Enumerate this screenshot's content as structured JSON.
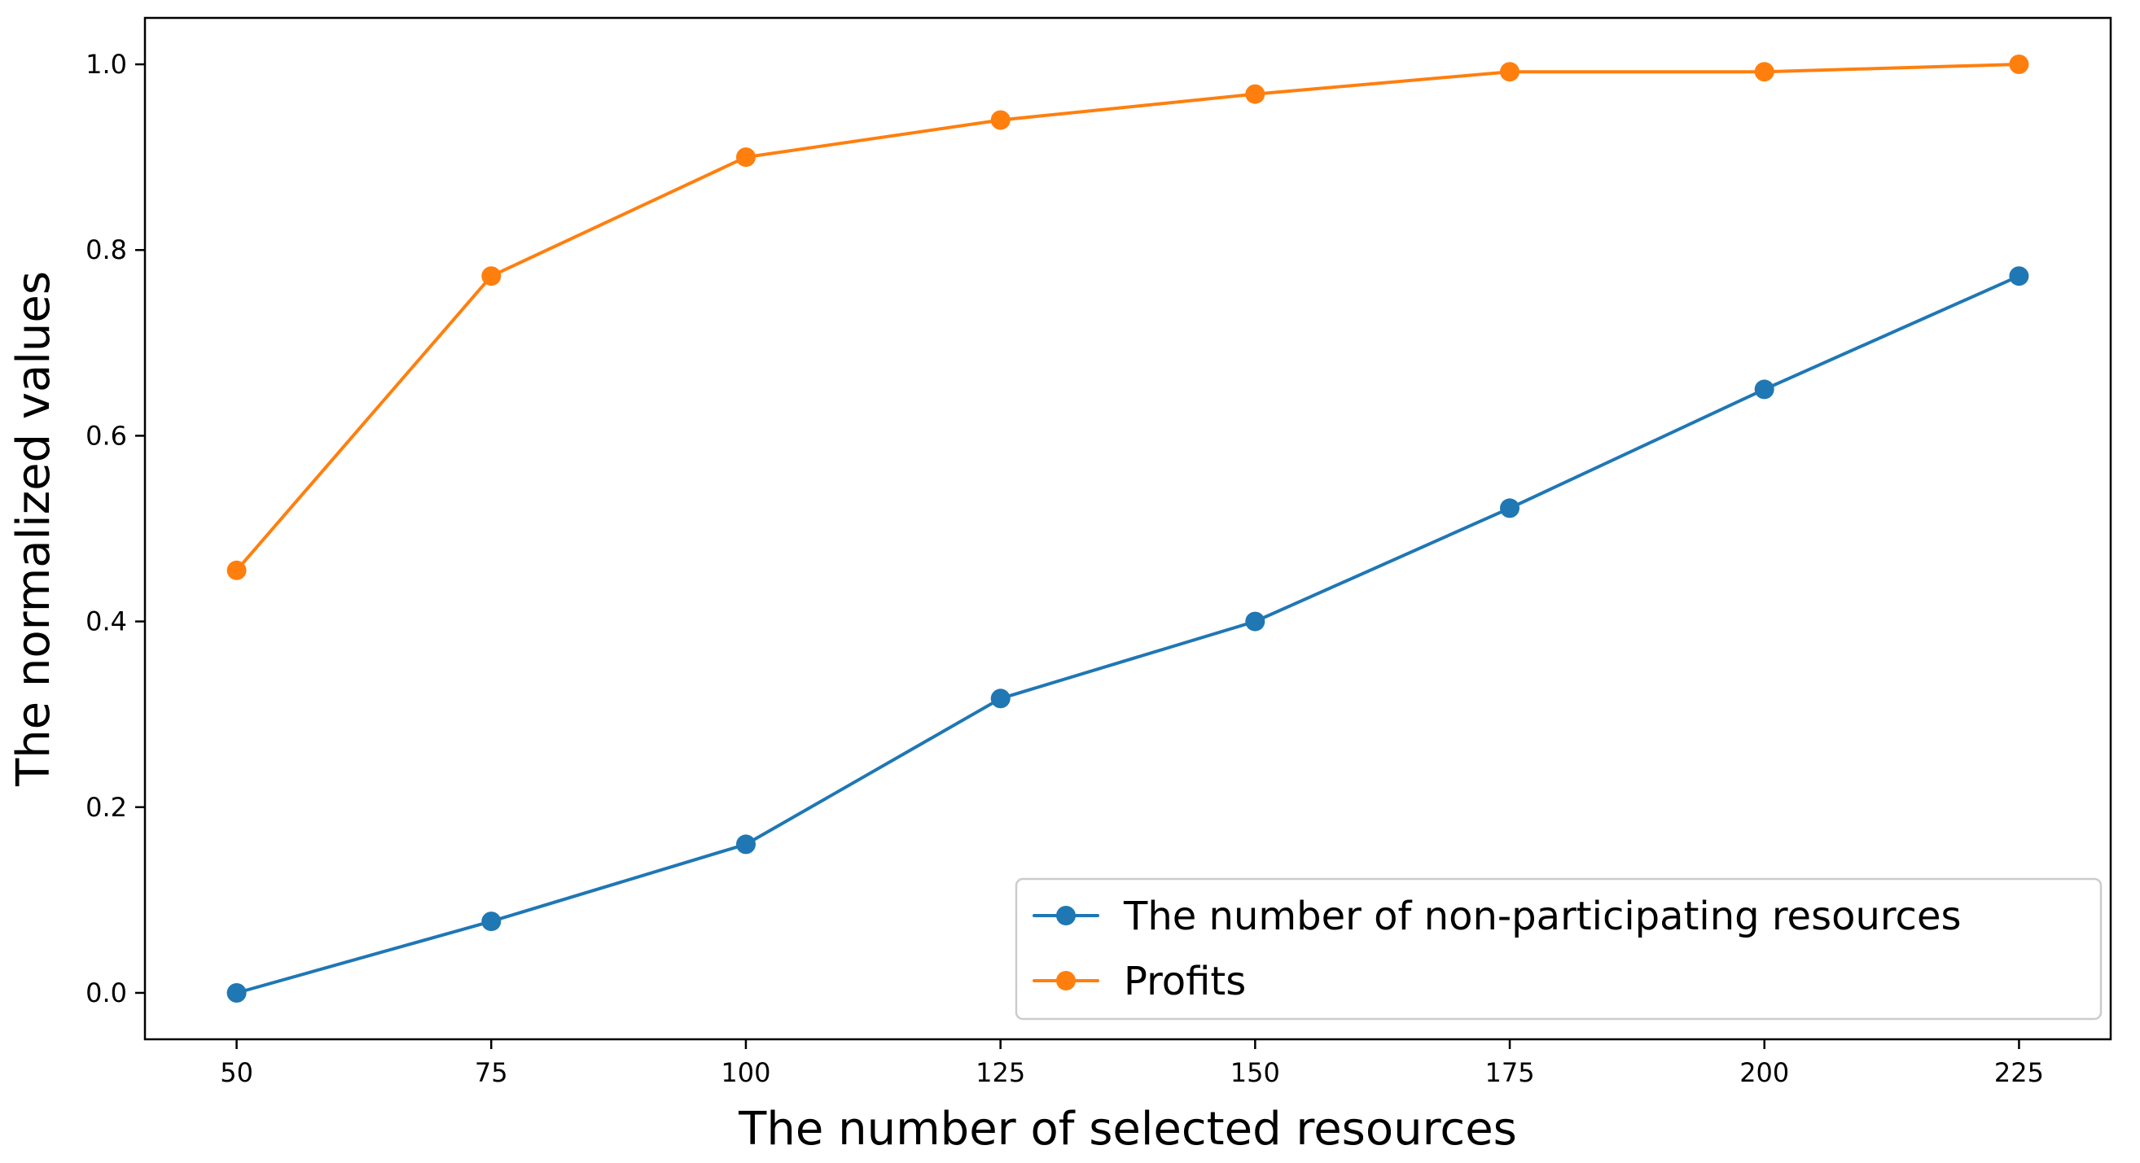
{
  "chart_data": {
    "type": "line",
    "title": "",
    "xlabel": "The number of selected resources",
    "ylabel": "The normalized values",
    "x": [
      50,
      75,
      100,
      125,
      150,
      175,
      200,
      225
    ],
    "xlim": [
      41,
      234
    ],
    "ylim": [
      -0.05,
      1.05
    ],
    "xticks": [
      50,
      75,
      100,
      125,
      150,
      175,
      200,
      225
    ],
    "yticks": [
      0.0,
      0.2,
      0.4,
      0.6,
      0.8,
      1.0
    ],
    "ytick_labels": [
      "0.0",
      "0.2",
      "0.4",
      "0.6",
      "0.8",
      "1.0"
    ],
    "grid": false,
    "legend_position": "bottom-right",
    "series": [
      {
        "name": "The number of non-participating resources",
        "color": "#1f77b4",
        "marker": "circle",
        "values": [
          0.0,
          0.077,
          0.16,
          0.317,
          0.4,
          0.522,
          0.65,
          0.772
        ]
      },
      {
        "name": "Profits",
        "color": "#ff7f0e",
        "marker": "circle",
        "values": [
          0.455,
          0.772,
          0.9,
          0.94,
          0.968,
          0.992,
          0.992,
          1.0
        ]
      }
    ]
  }
}
